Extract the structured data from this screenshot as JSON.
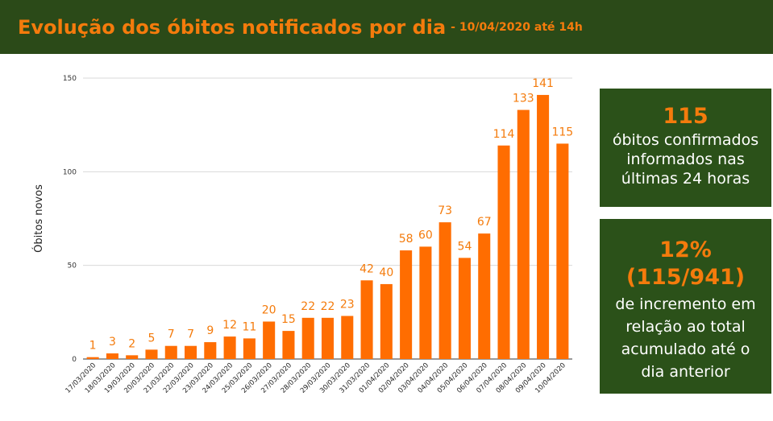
{
  "header": {
    "title": "Evolução dos óbitos notificados por dia",
    "subtitle": "- 10/04/2020 até 14h"
  },
  "colors": {
    "header_bg": "#2b4a18",
    "box_bg": "#2b5119",
    "accent": "#f47b0c",
    "bar": "#ff6d01"
  },
  "chart_data": {
    "type": "bar",
    "ylabel": "Óbitos novos",
    "xlabel": "",
    "ylim": [
      0,
      150
    ],
    "yticks": [
      0,
      50,
      100,
      150
    ],
    "grid": true,
    "categories": [
      "17/03/2020",
      "18/03/2020",
      "19/03/2020",
      "20/03/2020",
      "21/03/2020",
      "22/03/2020",
      "23/03/2020",
      "24/03/2020",
      "25/03/2020",
      "26/03/2020",
      "27/03/2020",
      "28/03/2020",
      "29/03/2020",
      "30/03/2020",
      "31/03/2020",
      "01/04/2020",
      "02/04/2020",
      "03/04/2020",
      "04/04/2020",
      "05/04/2020",
      "06/04/2020",
      "07/04/2020",
      "08/04/2020",
      "09/04/2020",
      "10/04/2020"
    ],
    "values": [
      1,
      3,
      2,
      5,
      7,
      7,
      9,
      12,
      11,
      20,
      15,
      22,
      22,
      23,
      42,
      40,
      58,
      60,
      73,
      54,
      67,
      114,
      133,
      141,
      115
    ]
  },
  "stats": [
    {
      "big": "115",
      "lines": [
        "óbitos confirmados",
        "informados nas",
        "últimas 24 horas"
      ]
    },
    {
      "big": "12%",
      "big2": "(115/941)",
      "lines": [
        "de incremento em",
        "relação ao total",
        "acumulado até o",
        "dia anterior"
      ]
    }
  ]
}
